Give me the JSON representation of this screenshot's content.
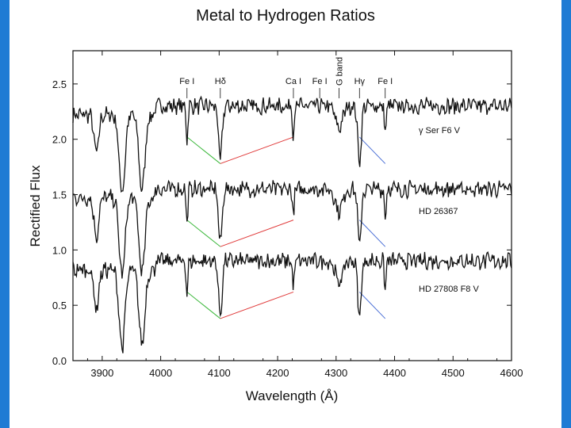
{
  "slide": {
    "title": "Metal to Hydrogen Ratios",
    "accent_color": "#1f7bd4"
  },
  "chart_data": {
    "type": "line",
    "title": "Metal to Hydrogen Ratios",
    "xlabel": "Wavelength (Å)",
    "ylabel": "Rectified Flux",
    "xlim": [
      3850,
      4600
    ],
    "ylim": [
      0.0,
      2.8
    ],
    "xticks": [
      "3900",
      "4000",
      "4100",
      "4200",
      "4300",
      "4400",
      "4500",
      "4600"
    ],
    "yticks": [
      "0.0",
      "0.5",
      "1.0",
      "1.5",
      "2.0",
      "2.5"
    ],
    "series": [
      {
        "name": "γ Ser  F6 V",
        "offset": 2.3,
        "label": "γ Ser  F6 V"
      },
      {
        "name": "HD 26367",
        "offset": 1.55,
        "label": "HD 26367"
      },
      {
        "name": "HD 27808  F8 V",
        "offset": 0.9,
        "label": "HD 27808  F8 V"
      }
    ],
    "absorption_lines": [
      {
        "wavelength": 3934,
        "depth": 0.7,
        "width": 5
      },
      {
        "wavelength": 3968,
        "depth": 0.68,
        "width": 5
      },
      {
        "wavelength": 3890,
        "depth": 0.35,
        "width": 4
      },
      {
        "wavelength": 4045,
        "depth": 0.3,
        "width": 1.5
      },
      {
        "wavelength": 4102,
        "depth": 0.5,
        "width": 3
      },
      {
        "wavelength": 4227,
        "depth": 0.25,
        "width": 1.5
      },
      {
        "wavelength": 4305,
        "depth": 0.2,
        "width": 6
      },
      {
        "wavelength": 4340,
        "depth": 0.5,
        "width": 3
      },
      {
        "wavelength": 4384,
        "depth": 0.25,
        "width": 1.5
      }
    ],
    "line_ids": [
      {
        "label": "Fe I",
        "wavelength": 4045
      },
      {
        "label": "Hδ",
        "wavelength": 4102
      },
      {
        "label": "Ca I",
        "wavelength": 4227
      },
      {
        "label": "Fe I",
        "wavelength": 4272
      },
      {
        "label": "G band",
        "wavelength": 4305
      },
      {
        "label": "Hγ",
        "wavelength": 4340
      },
      {
        "label": "Fe I",
        "wavelength": 4384
      }
    ],
    "ratio_lines": [
      {
        "from": 4045,
        "to": 4102,
        "color": "#3cb83c"
      },
      {
        "from": 4102,
        "to": 4227,
        "color": "#e03a3a"
      },
      {
        "from": 4340,
        "to": 4384,
        "color": "#4a6fd6"
      }
    ],
    "colors": {
      "spectrum": "#111111",
      "green": "#3cb83c",
      "red": "#e03a3a",
      "blue": "#4a6fd6"
    }
  }
}
